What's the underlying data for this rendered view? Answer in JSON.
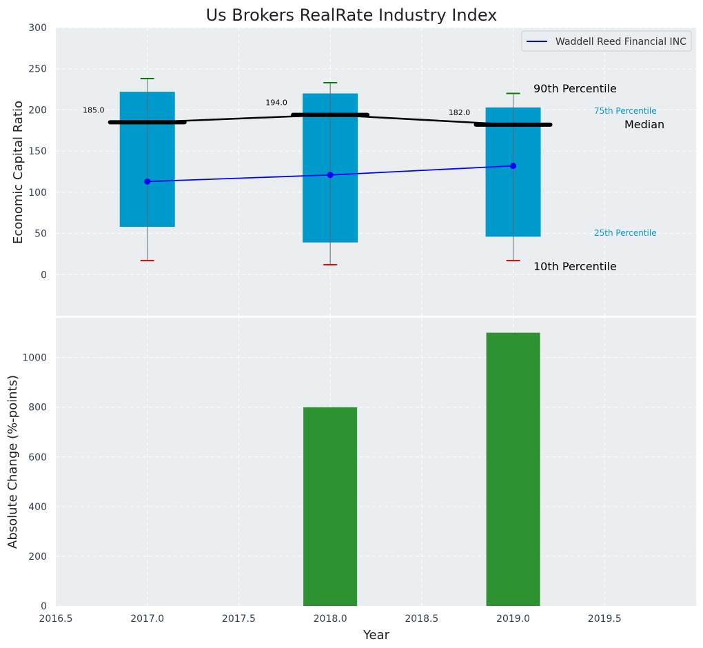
{
  "chart_data": [
    {
      "type": "box",
      "title": "Us Brokers RealRate Industry Index",
      "xlabel": "",
      "ylabel": "Economic Capital Ratio",
      "xlim": [
        2016.5,
        2020.0
      ],
      "ylim": [
        -50,
        300
      ],
      "yticks": [
        0,
        50,
        100,
        150,
        200,
        250,
        300
      ],
      "grid": true,
      "legend": {
        "placement": "top-right",
        "entries": [
          "Waddell Reed Financial INC"
        ]
      },
      "x": [
        2017,
        2018,
        2019
      ],
      "p10": [
        17,
        12,
        17
      ],
      "p25": [
        58,
        39,
        46
      ],
      "median": [
        185.0,
        194.0,
        182.0
      ],
      "p75": [
        222,
        220,
        203
      ],
      "p90": [
        238,
        233,
        220
      ],
      "median_labels": [
        "185.0",
        "194.0",
        "182.0"
      ],
      "series": [
        {
          "name": "Waddell Reed Financial INC",
          "values": [
            113,
            121,
            132
          ],
          "color": "#0000ff"
        }
      ],
      "annotations": {
        "p90": "90th Percentile",
        "p75": "75th Percentile",
        "median": "Median",
        "p25": "25th Percentile",
        "p10": "10th Percentile"
      },
      "colors": {
        "box": "#0099cc",
        "median": "#000000",
        "p90_cap": "#008000",
        "p10_cap": "#ff0000",
        "p75_label": "#0099cc",
        "p25_label": "#0099cc"
      }
    },
    {
      "type": "bar",
      "xlabel": "Year",
      "ylabel": "Absolute Change (%-points)",
      "xlim": [
        2016.5,
        2020.0
      ],
      "xticks": [
        "2016.5",
        "2017.0",
        "2017.5",
        "2018.0",
        "2018.5",
        "2019.0",
        "2019.5"
      ],
      "ylim": [
        0,
        1160
      ],
      "yticks": [
        0,
        200,
        400,
        600,
        800,
        1000
      ],
      "grid": true,
      "x": [
        2017,
        2018,
        2019
      ],
      "values": [
        0,
        800,
        1100
      ],
      "colors": {
        "bar": "#2e9132"
      }
    }
  ]
}
